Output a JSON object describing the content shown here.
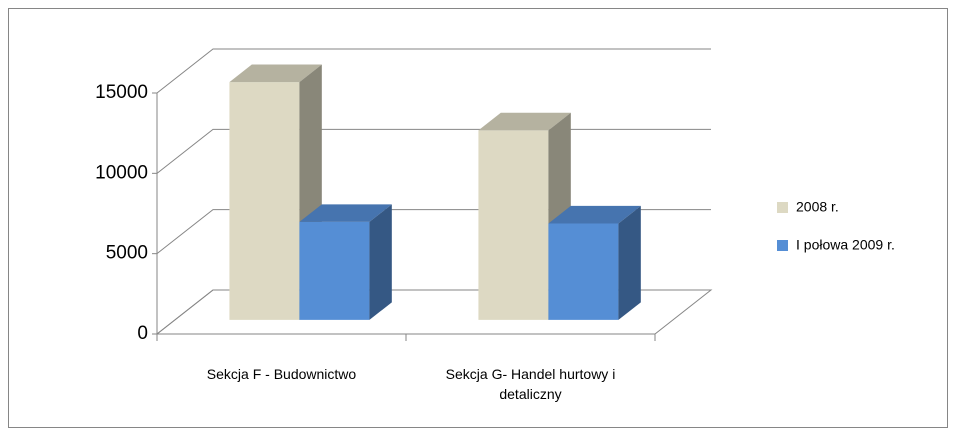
{
  "chart_data": {
    "type": "bar3d",
    "categories": [
      "Sekcja F - Budownictwo",
      "Sekcja G- Handel hurtowy i detaliczny"
    ],
    "series": [
      {
        "name": "2008 r.",
        "color": "#ddd9c3",
        "values": [
          14800,
          11800
        ]
      },
      {
        "name": "I połowa 2009 r.",
        "color": "#558ed5",
        "values": [
          6100,
          6000
        ]
      }
    ],
    "ylim": [
      0,
      15000
    ],
    "yticks": [
      0,
      5000,
      10000,
      15000
    ],
    "grid": true,
    "legend": "right"
  }
}
